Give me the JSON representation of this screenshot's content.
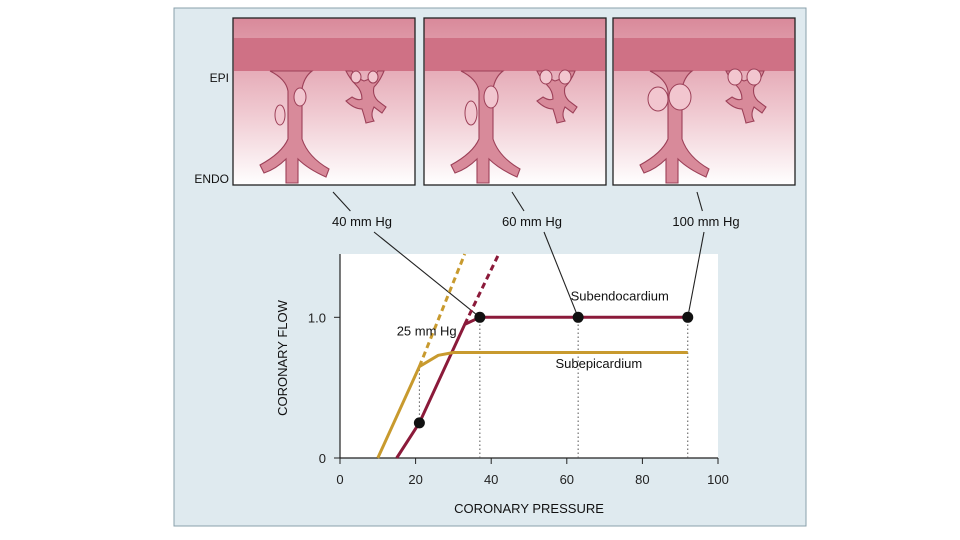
{
  "side_labels": {
    "epi": "EPI",
    "endo": "ENDO"
  },
  "panels": [
    {
      "pressure_label": "40 mm Hg"
    },
    {
      "pressure_label": "60 mm Hg"
    },
    {
      "pressure_label": "100 mm Hg"
    }
  ],
  "colors": {
    "panel_background": "#dfeaef",
    "tissue": "#d07a8c",
    "vessel_outline": "#8c3448",
    "subendocardium": "#8b1a3a",
    "subepicardium": "#c89a2e"
  },
  "chart_data": {
    "type": "line",
    "xlabel": "CORONARY PRESSURE",
    "ylabel": "CORONARY FLOW",
    "xlim": [
      0,
      100
    ],
    "ylim": [
      0,
      1.45
    ],
    "x_ticks": [
      0,
      20,
      40,
      60,
      80,
      100
    ],
    "y_ticks": [
      {
        "value": 0,
        "label": "0"
      },
      {
        "value": 1.0,
        "label": "1.0"
      }
    ],
    "grid": false,
    "series": [
      {
        "name": "Subendocardium",
        "color": "#8b1a3a",
        "points": [
          [
            15,
            0
          ],
          [
            21,
            0.25
          ],
          [
            33,
            0.95
          ],
          [
            37,
            1.0
          ],
          [
            63,
            1.0
          ],
          [
            92,
            1.0
          ]
        ]
      },
      {
        "name": "Subepicardium",
        "color": "#c89a2e",
        "points": [
          [
            10,
            0
          ],
          [
            21,
            0.65
          ],
          [
            26,
            0.73
          ],
          [
            30,
            0.75
          ],
          [
            92,
            0.75
          ]
        ]
      }
    ],
    "dashed_extensions": [
      {
        "color": "#8b1a3a",
        "from": [
          33,
          0.95
        ],
        "to": [
          42,
          1.45
        ]
      },
      {
        "color": "#c89a2e",
        "from": [
          21,
          0.65
        ],
        "to": [
          33,
          1.45
        ]
      }
    ],
    "markers": [
      [
        21,
        0.25
      ],
      [
        37,
        1.0
      ],
      [
        63,
        1.0
      ],
      [
        92,
        1.0
      ]
    ],
    "drop_lines": [
      [
        21,
        0.25,
        0.65
      ],
      [
        37,
        0,
        1.0
      ],
      [
        63,
        0,
        1.0
      ],
      [
        92,
        0,
        1.0
      ]
    ],
    "annotations": [
      {
        "text": "25 mm Hg",
        "x": 15,
        "y": 0.87
      },
      {
        "text": "Subendocardium",
        "x": 61,
        "y": 1.12
      },
      {
        "text": "Subepicardium",
        "x": 57,
        "y": 0.64
      }
    ],
    "callouts": [
      {
        "panel": 0,
        "to": [
          37,
          1.0
        ]
      },
      {
        "panel": 1,
        "to": [
          63,
          1.0
        ]
      },
      {
        "panel": 2,
        "to": [
          92,
          1.0
        ]
      }
    ]
  }
}
